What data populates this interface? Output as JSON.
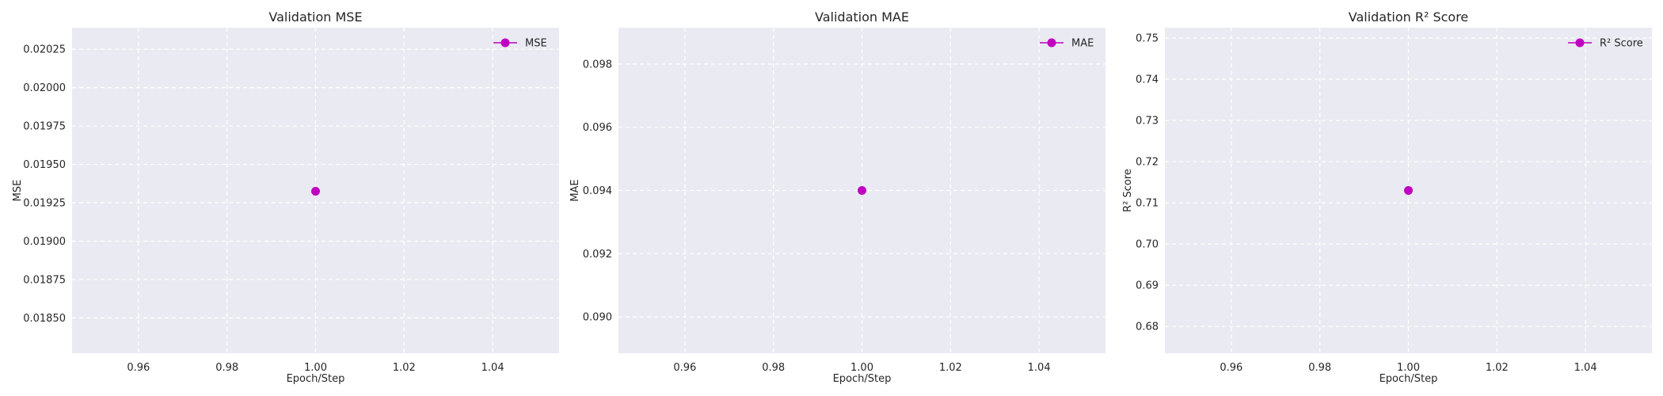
{
  "colors": {
    "series": "#c000c0",
    "plot_background": "#eaeaf2",
    "grid": "#ffffff"
  },
  "chart_data": [
    {
      "type": "line",
      "title": "Validation MSE",
      "xlabel": "Epoch/Step",
      "ylabel": "MSE",
      "grid": true,
      "legend_position": "top-right",
      "marker": "circle",
      "xlim": [
        0.945,
        1.055
      ],
      "ylim": [
        0.01827,
        0.02039
      ],
      "x_ticks": [
        "0.96",
        "0.98",
        "1.00",
        "1.02",
        "1.04"
      ],
      "y_ticks": [
        "0.01850",
        "0.01875",
        "0.01900",
        "0.01925",
        "0.01950",
        "0.01975",
        "0.02000",
        "0.02025"
      ],
      "series": [
        {
          "name": "MSE",
          "x": [
            1.0
          ],
          "y": [
            0.019325
          ]
        }
      ]
    },
    {
      "type": "line",
      "title": "Validation MAE",
      "xlabel": "Epoch/Step",
      "ylabel": "MAE",
      "grid": true,
      "legend_position": "top-right",
      "marker": "circle",
      "xlim": [
        0.945,
        1.055
      ],
      "ylim": [
        0.08885,
        0.09915
      ],
      "x_ticks": [
        "0.96",
        "0.98",
        "1.00",
        "1.02",
        "1.04"
      ],
      "y_ticks": [
        "0.090",
        "0.092",
        "0.094",
        "0.096",
        "0.098"
      ],
      "series": [
        {
          "name": "MAE",
          "x": [
            1.0
          ],
          "y": [
            0.094
          ]
        }
      ]
    },
    {
      "type": "line",
      "title": "Validation R² Score",
      "xlabel": "Epoch/Step",
      "ylabel": "R² Score",
      "grid": true,
      "legend_position": "top-right",
      "marker": "circle",
      "xlim": [
        0.945,
        1.055
      ],
      "ylim": [
        0.6735,
        0.7525
      ],
      "x_ticks": [
        "0.96",
        "0.98",
        "1.00",
        "1.02",
        "1.04"
      ],
      "y_ticks": [
        "0.68",
        "0.69",
        "0.70",
        "0.71",
        "0.72",
        "0.73",
        "0.74",
        "0.75"
      ],
      "series": [
        {
          "name": "R² Score",
          "x": [
            1.0
          ],
          "y": [
            0.713
          ]
        }
      ]
    }
  ]
}
